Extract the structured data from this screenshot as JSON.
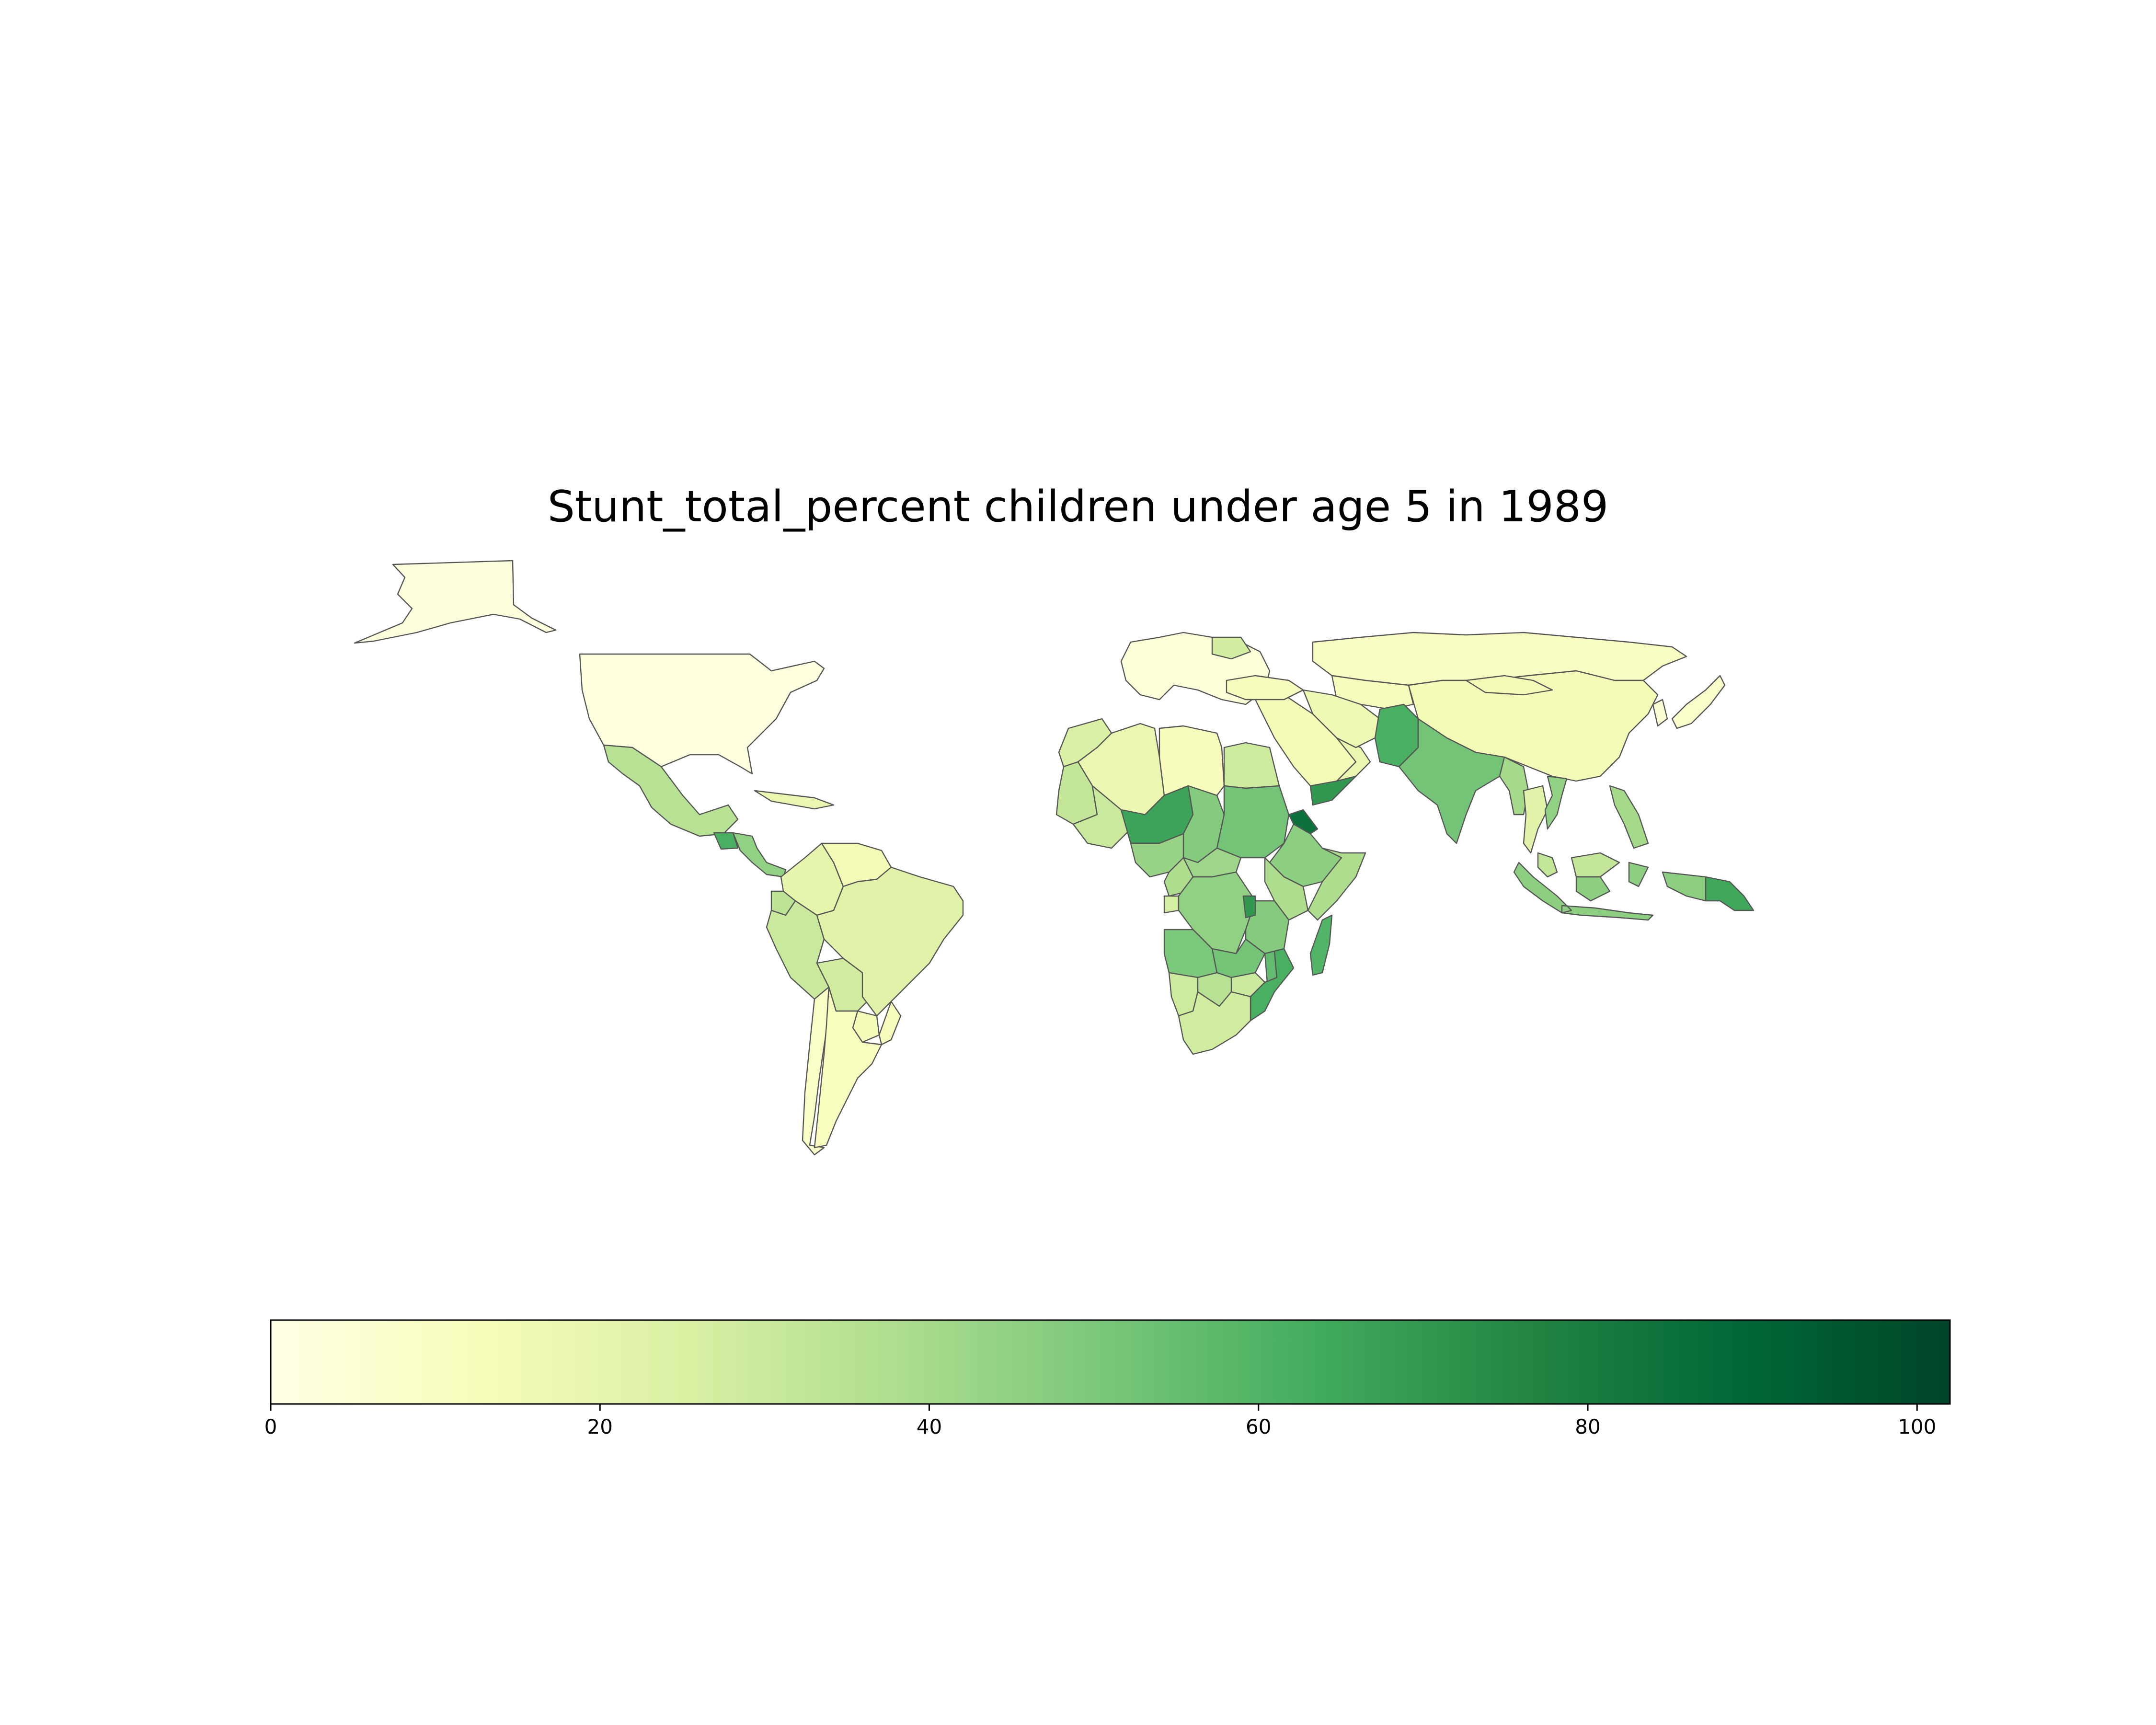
{
  "chart_data": {
    "type": "choropleth",
    "title": "Stunt_total_percent children under age 5 in 1989",
    "colormap": "YlGn",
    "colorbar": {
      "range": [
        0,
        102
      ],
      "ticks": [
        0,
        20,
        40,
        60,
        80,
        100
      ],
      "tick_labels": [
        "0",
        "20",
        "40",
        "60",
        "80",
        "100"
      ],
      "stops": [
        "#ffffe5",
        "#f7fcb9",
        "#d9f0a3",
        "#addd8e",
        "#78c679",
        "#41ab5d",
        "#238443",
        "#006837",
        "#004529"
      ]
    },
    "regions": [
      {
        "name": "Alaska",
        "value": 3
      },
      {
        "name": "United States",
        "value": 2
      },
      {
        "name": "Mexico",
        "value": 35
      },
      {
        "name": "Guatemala",
        "value": 62
      },
      {
        "name": "Central America",
        "value": 45
      },
      {
        "name": "Caribbean",
        "value": 18
      },
      {
        "name": "Colombia",
        "value": 20
      },
      {
        "name": "Venezuela",
        "value": 15
      },
      {
        "name": "Ecuador",
        "value": 34
      },
      {
        "name": "Peru",
        "value": 30
      },
      {
        "name": "Bolivia",
        "value": 28
      },
      {
        "name": "Brazil",
        "value": 23
      },
      {
        "name": "Paraguay",
        "value": 14
      },
      {
        "name": "Uruguay",
        "value": 12
      },
      {
        "name": "Chile",
        "value": 9
      },
      {
        "name": "Argentina",
        "value": 11
      },
      {
        "name": "Morocco",
        "value": 25
      },
      {
        "name": "Algeria",
        "value": 18
      },
      {
        "name": "Libya",
        "value": 12
      },
      {
        "name": "Egypt",
        "value": 29
      },
      {
        "name": "Mauritania",
        "value": 32
      },
      {
        "name": "Mali",
        "value": 30
      },
      {
        "name": "Niger",
        "value": 66
      },
      {
        "name": "Chad",
        "value": 48
      },
      {
        "name": "Sudan",
        "value": 52
      },
      {
        "name": "Ethiopia",
        "value": 46
      },
      {
        "name": "Somalia",
        "value": 38
      },
      {
        "name": "Eritrea",
        "value": 85
      },
      {
        "name": "Yemen",
        "value": 70
      },
      {
        "name": "Saudi Arabia",
        "value": 14
      },
      {
        "name": "Oman",
        "value": 18
      },
      {
        "name": "Nigeria",
        "value": 43
      },
      {
        "name": "Central African Republic",
        "value": 42
      },
      {
        "name": "Cameroon",
        "value": 38
      },
      {
        "name": "Gabon",
        "value": 26
      },
      {
        "name": "DR Congo",
        "value": 45
      },
      {
        "name": "Kenya",
        "value": 38
      },
      {
        "name": "Tanzania",
        "value": 48
      },
      {
        "name": "Burundi",
        "value": 70
      },
      {
        "name": "Angola",
        "value": 50
      },
      {
        "name": "Zambia",
        "value": 52
      },
      {
        "name": "Malawi",
        "value": 56
      },
      {
        "name": "Mozambique",
        "value": 62
      },
      {
        "name": "Zimbabwe",
        "value": 30
      },
      {
        "name": "Namibia",
        "value": 29
      },
      {
        "name": "Botswana",
        "value": 35
      },
      {
        "name": "South Africa",
        "value": 28
      },
      {
        "name": "Madagascar",
        "value": 60
      },
      {
        "name": "Europe",
        "value": 4
      },
      {
        "name": "Poland",
        "value": 27
      },
      {
        "name": "Russia",
        "value": 10
      },
      {
        "name": "Kazakhstan",
        "value": 12
      },
      {
        "name": "Turkey",
        "value": 12
      },
      {
        "name": "Iran",
        "value": 16
      },
      {
        "name": "Pakistan",
        "value": 62
      },
      {
        "name": "India",
        "value": 52
      },
      {
        "name": "China",
        "value": 14
      },
      {
        "name": "Mongolia",
        "value": 14
      },
      {
        "name": "Myanmar",
        "value": 40
      },
      {
        "name": "Thailand",
        "value": 22
      },
      {
        "name": "Vietnam",
        "value": 45
      },
      {
        "name": "Philippines",
        "value": 40
      },
      {
        "name": "Malaysia",
        "value": 32
      },
      {
        "name": "Indonesia",
        "value": 46
      },
      {
        "name": "Papua New Guinea",
        "value": 65
      },
      {
        "name": "Japan",
        "value": 8
      },
      {
        "name": "Korea",
        "value": 6
      }
    ]
  }
}
